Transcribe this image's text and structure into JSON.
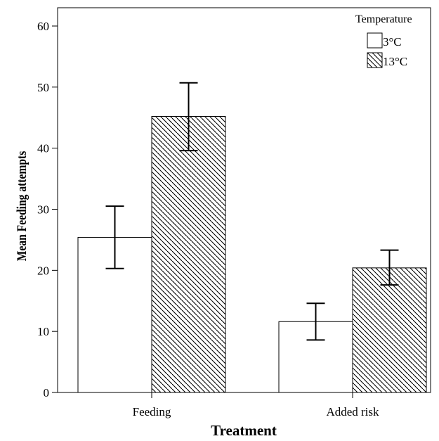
{
  "chart_data": {
    "type": "bar",
    "xlabel": "Treatment",
    "ylabel": "Mean Feeding attempts",
    "ylim": [
      0,
      63
    ],
    "yticks": [
      0,
      10,
      20,
      30,
      40,
      50,
      60
    ],
    "categories": [
      "Feeding",
      "Added risk"
    ],
    "legend_title": "Temperature",
    "legend_position": "top-right",
    "grid": false,
    "series": [
      {
        "name": "3°C",
        "fill": "#ffffff",
        "pattern": "none",
        "values": [
          25.4,
          11.6
        ],
        "error_low": [
          20.3,
          8.6
        ],
        "error_high": [
          30.5,
          14.6
        ]
      },
      {
        "name": "13°C",
        "fill": "#ffffff",
        "pattern": "diagonal-hatch",
        "values": [
          45.2,
          20.4
        ],
        "error_low": [
          39.6,
          17.6
        ],
        "error_high": [
          50.7,
          23.3
        ]
      }
    ],
    "colors": {
      "stroke": "#000000",
      "hatch": "#000000"
    }
  }
}
